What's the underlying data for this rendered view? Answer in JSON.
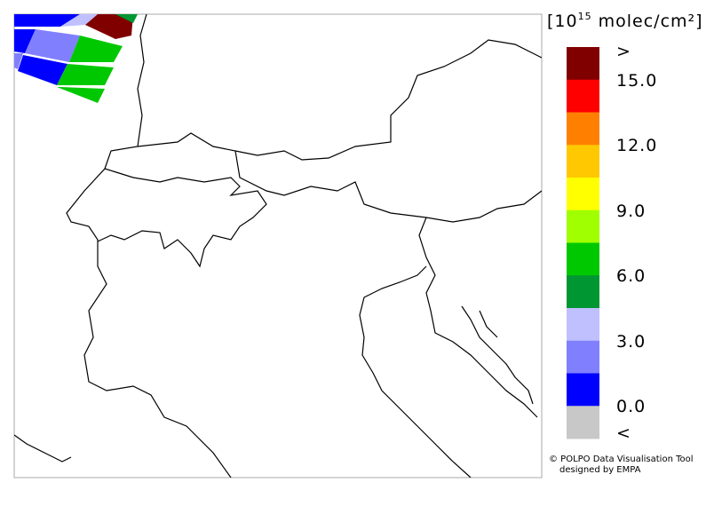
{
  "colorbar": {
    "title_prefix": "[10",
    "title_exponent": "15",
    "title_suffix": " molec/cm²]",
    "colors": [
      "#800000",
      "#ff0000",
      "#ff8000",
      "#ffc800",
      "#ffff00",
      "#a0ff00",
      "#00c800",
      "#009632",
      "#c0c0ff",
      "#8080ff",
      "#0000ff",
      "#c8c8c8"
    ],
    "labels": [
      ">",
      "15.0",
      "12.0",
      "9.0",
      "6.0",
      "3.0",
      "0.0",
      "<"
    ]
  },
  "credit": {
    "line1": "© POLPO Data Visualisation Tool",
    "line2": "designed by EMPA"
  }
}
